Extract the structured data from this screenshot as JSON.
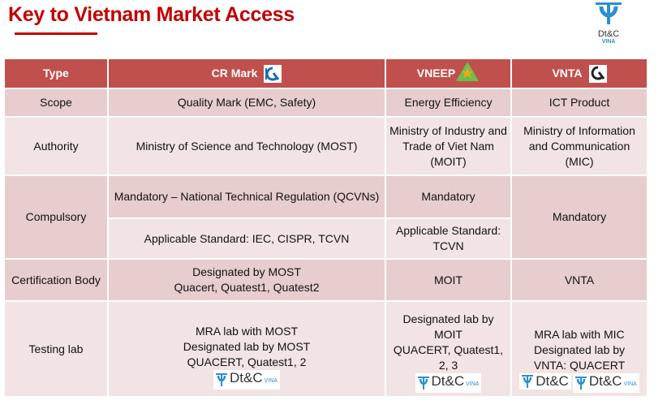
{
  "title": "Key to Vietnam Market Access",
  "brand": {
    "name": "Dt&C",
    "sub": "VINA"
  },
  "headers": [
    "Type",
    "CR Mark",
    "VNEEP",
    "VNTA"
  ],
  "rows": {
    "scope": {
      "label": "Scope",
      "cr": "Quality Mark (EMC, Safety)",
      "vneep": "Energy Efficiency",
      "vnta": "ICT Product"
    },
    "authority": {
      "label": "Authority",
      "cr": "Ministry of Science and Technology (MOST)",
      "vneep": "Ministry of Industry and Trade of Viet Nam (MOIT)",
      "vnta": "Ministry of Information and Communication (MIC)"
    },
    "compulsory": {
      "label": "Compulsory",
      "cr1": "Mandatory – National Technical Regulation (QCVNs)",
      "cr2": "Applicable Standard: IEC, CISPR, TCVN",
      "vneep1": "Mandatory",
      "vneep2": "Applicable Standard: TCVN",
      "vnta": "Mandatory"
    },
    "cert": {
      "label": "Certification Body",
      "cr": "Designated by MOST\nQuacert, Quatest1, Quatest2",
      "vneep": "MOIT",
      "vnta": "VNTA"
    },
    "testing": {
      "label": "Testing lab",
      "cr": "MRA lab with MOST\nDesignated lab by MOST\nQUACERT, Quatest1, 2",
      "vneep": "Designated lab by\nMOIT\nQUACERT, Quatest1,\n2, 3",
      "vnta": "MRA lab with MIC\nDesignated lab by\nVNTA: QUACERT"
    }
  },
  "colors": {
    "title": "#c00000",
    "header": "#c0504d",
    "row_dark": "#e7cdcd",
    "row_light": "#f2e4e4",
    "brand_blue": "#2a8fd0"
  }
}
